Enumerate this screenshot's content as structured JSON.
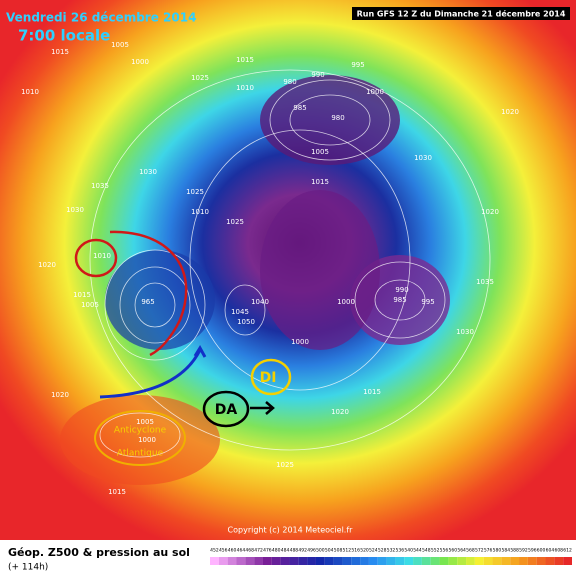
{
  "header": {
    "date": "Vendredi 26 décembre 2014",
    "time": "7:00 locale",
    "run": "Run GFS 12 Z du Dimanche 21 décembre 2014"
  },
  "footer": {
    "title": "Géop. Z500 & pression au sol",
    "lead": "(+ 114h)",
    "copyright": "Copyright (c) 2014 Meteociel.fr"
  },
  "annotations": {
    "da": "DA",
    "di": "DI",
    "anticyclone": [
      "Anticyclone",
      "Atlantique"
    ]
  },
  "isobar_labels": [
    "1015",
    "1010",
    "1005",
    "1000",
    "1015",
    "1025",
    "1010",
    "980",
    "990",
    "995",
    "985",
    "980",
    "1000",
    "1005",
    "1030",
    "1030",
    "1020",
    "1025",
    "1015",
    "1010",
    "1020",
    "1035",
    "1030",
    "1040",
    "1045",
    "1050",
    "965",
    "1000",
    "1000",
    "990",
    "985",
    "995",
    "1020",
    "1015",
    "1005",
    "1010",
    "1025",
    "1035",
    "1015",
    "1020",
    "1000",
    "1005",
    "1030",
    "1015",
    "1020",
    "1025"
  ],
  "color_scale": {
    "ticks": [
      452,
      456,
      460,
      464,
      468,
      472,
      476,
      480,
      484,
      488,
      492,
      496,
      500,
      504,
      508,
      512,
      516,
      520,
      524,
      528,
      532,
      536,
      540,
      544,
      548,
      552,
      556,
      560,
      564,
      568,
      572,
      576,
      580,
      584,
      588,
      592,
      596,
      600,
      604,
      608,
      612
    ]
  }
}
